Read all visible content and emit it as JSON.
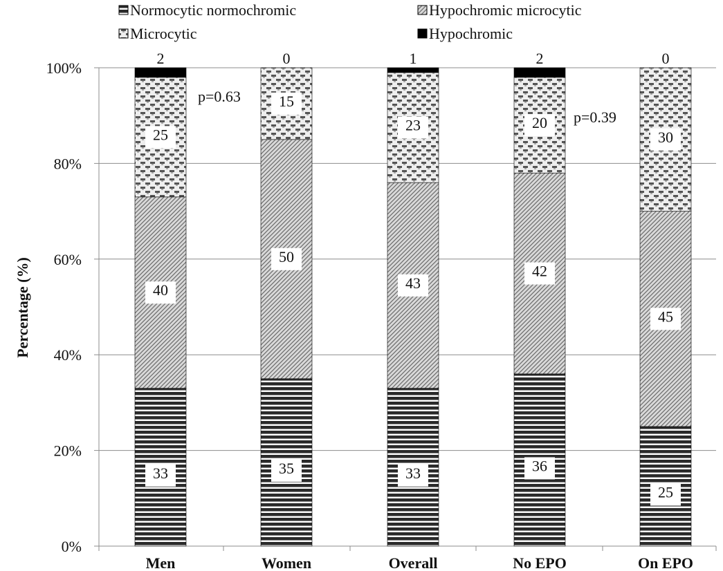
{
  "chart_data": {
    "type": "bar",
    "stacked": true,
    "percent": true,
    "categories": [
      "Men",
      "Women",
      "Overall",
      "No EPO",
      "On EPO"
    ],
    "series": [
      {
        "name": "Normocytic normochromic",
        "values": [
          33,
          35,
          33,
          36,
          25
        ],
        "pattern": "horizontal-stripes"
      },
      {
        "name": "Hypochromic microcytic",
        "values": [
          40,
          50,
          43,
          42,
          45
        ],
        "pattern": "fine-diagonal"
      },
      {
        "name": "Microcytic",
        "values": [
          25,
          15,
          23,
          20,
          30
        ],
        "pattern": "checker"
      },
      {
        "name": "Hypochromic",
        "values": [
          2,
          0,
          1,
          2,
          0
        ],
        "pattern": "solid-black"
      }
    ],
    "ylabel": "Percentage (%)",
    "xlabel": "",
    "ylim": [
      0,
      100
    ],
    "yticks": [
      "0%",
      "20%",
      "40%",
      "60%",
      "80%",
      "100%"
    ],
    "grid": true,
    "legend": "top",
    "annotations": [
      "p=0.63",
      "p=0.39"
    ]
  }
}
